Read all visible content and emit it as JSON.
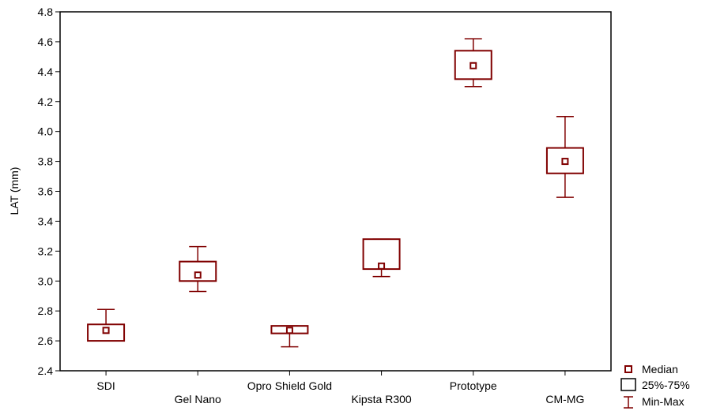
{
  "colors": {
    "series": "#800000",
    "axis": "#000000",
    "background": "#ffffff"
  },
  "chart_data": {
    "type": "boxplot",
    "title": "",
    "xlabel": "",
    "ylabel": "LAT (mm)",
    "ylim": [
      2.4,
      4.8
    ],
    "yticks": [
      "2.4",
      "2.6",
      "2.8",
      "3.0",
      "3.2",
      "3.4",
      "3.6",
      "3.8",
      "4.0",
      "4.2",
      "4.4",
      "4.6",
      "4.8"
    ],
    "categories": [
      "SDI",
      "Gel Nano",
      "Opro Shield Gold",
      "Kipsta R300",
      "Prototype",
      "CM-MG"
    ],
    "boxes": [
      {
        "category": "SDI",
        "min": 2.6,
        "q1": 2.6,
        "median": 2.67,
        "q3": 2.71,
        "max": 2.81
      },
      {
        "category": "Gel Nano",
        "min": 2.93,
        "q1": 3.0,
        "median": 3.04,
        "q3": 3.13,
        "max": 3.23
      },
      {
        "category": "Opro Shield Gold",
        "min": 2.56,
        "q1": 2.65,
        "median": 2.67,
        "q3": 2.7,
        "max": 2.7
      },
      {
        "category": "Kipsta R300",
        "min": 3.03,
        "q1": 3.08,
        "median": 3.1,
        "q3": 3.28,
        "max": 3.28
      },
      {
        "category": "Prototype",
        "min": 4.3,
        "q1": 4.35,
        "median": 4.44,
        "q3": 4.54,
        "max": 4.62
      },
      {
        "category": "CM-MG",
        "min": 3.56,
        "q1": 3.72,
        "median": 3.8,
        "q3": 3.89,
        "max": 4.1
      }
    ],
    "legend": {
      "position": "bottom-right",
      "items": [
        {
          "symbol": "median",
          "label": "Median"
        },
        {
          "symbol": "box",
          "label": "25%-75%"
        },
        {
          "symbol": "whisker",
          "label": "Min-Max"
        }
      ]
    }
  }
}
